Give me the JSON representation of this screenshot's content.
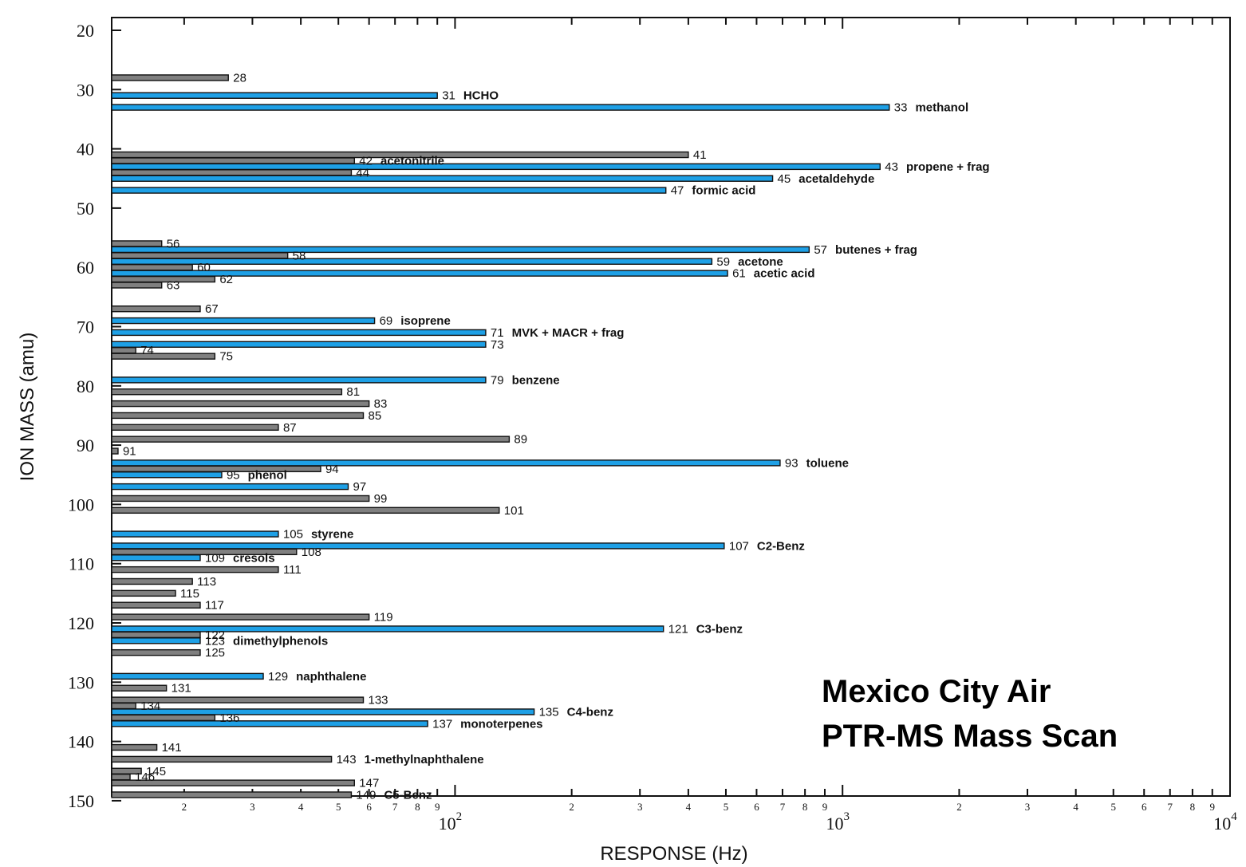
{
  "chart_data": {
    "type": "bar",
    "orientation": "horizontal",
    "title_lines": [
      "Mexico City Air",
      "PTR-MS Mass Scan"
    ],
    "xlabel": "RESPONSE (Hz)",
    "ylabel": "ION MASS (amu)",
    "x_scale": "log",
    "xlim": [
      13,
      10000
    ],
    "ylim": [
      20,
      150
    ],
    "y_ticks": [
      20,
      30,
      40,
      50,
      60,
      70,
      80,
      90,
      100,
      110,
      120,
      130,
      140,
      150
    ],
    "x_minor_tick_labels": [
      "2",
      "3",
      "4",
      "5",
      "6",
      "7",
      "8",
      "9"
    ],
    "x_major_tick_labels": [
      {
        "value": 100,
        "base": "10",
        "exp": "2"
      },
      {
        "value": 1000,
        "base": "10",
        "exp": "3"
      },
      {
        "value": 10000,
        "base": "10",
        "exp": "4"
      }
    ],
    "grid": false,
    "colors": {
      "highlighted": "#1ea0e6",
      "other": "#808080",
      "outline": "#111111"
    },
    "bars": [
      {
        "mass": 28,
        "response": 26,
        "highlighted": false,
        "label": "28",
        "compound": ""
      },
      {
        "mass": 31,
        "response": 90,
        "highlighted": true,
        "label": "31",
        "compound": "HCHO"
      },
      {
        "mass": 33,
        "response": 1320,
        "highlighted": true,
        "label": "33",
        "compound": "methanol"
      },
      {
        "mass": 41,
        "response": 400,
        "highlighted": false,
        "label": "41",
        "compound": ""
      },
      {
        "mass": 42,
        "response": 55,
        "highlighted": false,
        "label": "42",
        "compound": "acetonitrile"
      },
      {
        "mass": 43,
        "response": 1250,
        "highlighted": true,
        "label": "43",
        "compound": "propene + frag"
      },
      {
        "mass": 44,
        "response": 54,
        "highlighted": false,
        "label": "44",
        "compound": ""
      },
      {
        "mass": 45,
        "response": 660,
        "highlighted": true,
        "label": "45",
        "compound": "acetaldehyde"
      },
      {
        "mass": 47,
        "response": 350,
        "highlighted": true,
        "label": "47",
        "compound": "formic acid"
      },
      {
        "mass": 56,
        "response": 17.5,
        "highlighted": false,
        "label": "56",
        "compound": ""
      },
      {
        "mass": 57,
        "response": 820,
        "highlighted": true,
        "label": "57",
        "compound": "butenes + frag"
      },
      {
        "mass": 58,
        "response": 37,
        "highlighted": false,
        "label": "58",
        "compound": ""
      },
      {
        "mass": 59,
        "response": 460,
        "highlighted": true,
        "label": "59",
        "compound": "acetone"
      },
      {
        "mass": 60,
        "response": 21,
        "highlighted": false,
        "label": "60",
        "compound": ""
      },
      {
        "mass": 61,
        "response": 505,
        "highlighted": true,
        "label": "61",
        "compound": "acetic acid"
      },
      {
        "mass": 62,
        "response": 24,
        "highlighted": false,
        "label": "62",
        "compound": ""
      },
      {
        "mass": 63,
        "response": 17.5,
        "highlighted": false,
        "label": "63",
        "compound": ""
      },
      {
        "mass": 67,
        "response": 22,
        "highlighted": false,
        "label": "67",
        "compound": ""
      },
      {
        "mass": 69,
        "response": 62,
        "highlighted": true,
        "label": "69",
        "compound": "isoprene"
      },
      {
        "mass": 71,
        "response": 120,
        "highlighted": true,
        "label": "71",
        "compound": "MVK + MACR + frag"
      },
      {
        "mass": 73,
        "response": 120,
        "highlighted": true,
        "label": "73",
        "compound": ""
      },
      {
        "mass": 74,
        "response": 15,
        "highlighted": false,
        "label": "74",
        "compound": ""
      },
      {
        "mass": 75,
        "response": 24,
        "highlighted": false,
        "label": "75",
        "compound": ""
      },
      {
        "mass": 79,
        "response": 120,
        "highlighted": true,
        "label": "79",
        "compound": "benzene"
      },
      {
        "mass": 81,
        "response": 51,
        "highlighted": false,
        "label": "81",
        "compound": ""
      },
      {
        "mass": 83,
        "response": 60,
        "highlighted": false,
        "label": "83",
        "compound": ""
      },
      {
        "mass": 85,
        "response": 58,
        "highlighted": false,
        "label": "85",
        "compound": ""
      },
      {
        "mass": 87,
        "response": 35,
        "highlighted": false,
        "label": "87",
        "compound": ""
      },
      {
        "mass": 89,
        "response": 138,
        "highlighted": false,
        "label": "89",
        "compound": ""
      },
      {
        "mass": 91,
        "response": 13.5,
        "highlighted": false,
        "label": "91",
        "compound": ""
      },
      {
        "mass": 93,
        "response": 690,
        "highlighted": true,
        "label": "93",
        "compound": "toluene"
      },
      {
        "mass": 94,
        "response": 45,
        "highlighted": false,
        "label": "94",
        "compound": ""
      },
      {
        "mass": 95,
        "response": 25,
        "highlighted": true,
        "label": "95",
        "compound": "phenol"
      },
      {
        "mass": 97,
        "response": 53,
        "highlighted": true,
        "label": "97",
        "compound": ""
      },
      {
        "mass": 99,
        "response": 60,
        "highlighted": false,
        "label": "99",
        "compound": ""
      },
      {
        "mass": 101,
        "response": 130,
        "highlighted": false,
        "label": "101",
        "compound": ""
      },
      {
        "mass": 105,
        "response": 35,
        "highlighted": true,
        "label": "105",
        "compound": "styrene"
      },
      {
        "mass": 107,
        "response": 495,
        "highlighted": true,
        "label": "107",
        "compound": "C2-Benz"
      },
      {
        "mass": 108,
        "response": 39,
        "highlighted": false,
        "label": "108",
        "compound": ""
      },
      {
        "mass": 109,
        "response": 22,
        "highlighted": true,
        "label": "109",
        "compound": "cresols"
      },
      {
        "mass": 111,
        "response": 35,
        "highlighted": false,
        "label": "111",
        "compound": ""
      },
      {
        "mass": 113,
        "response": 21,
        "highlighted": false,
        "label": "113",
        "compound": ""
      },
      {
        "mass": 115,
        "response": 19,
        "highlighted": false,
        "label": "115",
        "compound": ""
      },
      {
        "mass": 117,
        "response": 22,
        "highlighted": false,
        "label": "117",
        "compound": ""
      },
      {
        "mass": 119,
        "response": 60,
        "highlighted": false,
        "label": "119",
        "compound": ""
      },
      {
        "mass": 121,
        "response": 345,
        "highlighted": true,
        "label": "121",
        "compound": "C3-benz"
      },
      {
        "mass": 122,
        "response": 22,
        "highlighted": false,
        "label": "122",
        "compound": ""
      },
      {
        "mass": 123,
        "response": 22,
        "highlighted": true,
        "label": "123",
        "compound": "dimethylphenols"
      },
      {
        "mass": 125,
        "response": 22,
        "highlighted": false,
        "label": "125",
        "compound": ""
      },
      {
        "mass": 129,
        "response": 32,
        "highlighted": true,
        "label": "129",
        "compound": "naphthalene"
      },
      {
        "mass": 131,
        "response": 18,
        "highlighted": false,
        "label": "131",
        "compound": ""
      },
      {
        "mass": 133,
        "response": 58,
        "highlighted": false,
        "label": "133",
        "compound": ""
      },
      {
        "mass": 134,
        "response": 15,
        "highlighted": false,
        "label": "134",
        "compound": ""
      },
      {
        "mass": 135,
        "response": 160,
        "highlighted": true,
        "label": "135",
        "compound": "C4-benz"
      },
      {
        "mass": 136,
        "response": 24,
        "highlighted": false,
        "label": "136",
        "compound": ""
      },
      {
        "mass": 137,
        "response": 85,
        "highlighted": true,
        "label": "137",
        "compound": "monoterpenes"
      },
      {
        "mass": 141,
        "response": 17,
        "highlighted": false,
        "label": "141",
        "compound": ""
      },
      {
        "mass": 143,
        "response": 48,
        "highlighted": false,
        "label": "143",
        "compound": "1-methylnaphthalene"
      },
      {
        "mass": 145,
        "response": 15.5,
        "highlighted": false,
        "label": "145",
        "compound": ""
      },
      {
        "mass": 146,
        "response": 14.5,
        "highlighted": false,
        "label": "146",
        "compound": ""
      },
      {
        "mass": 147,
        "response": 55,
        "highlighted": false,
        "label": "147",
        "compound": ""
      },
      {
        "mass": 149,
        "response": 54,
        "highlighted": false,
        "label": "149",
        "compound": "C5-Benz"
      }
    ]
  }
}
